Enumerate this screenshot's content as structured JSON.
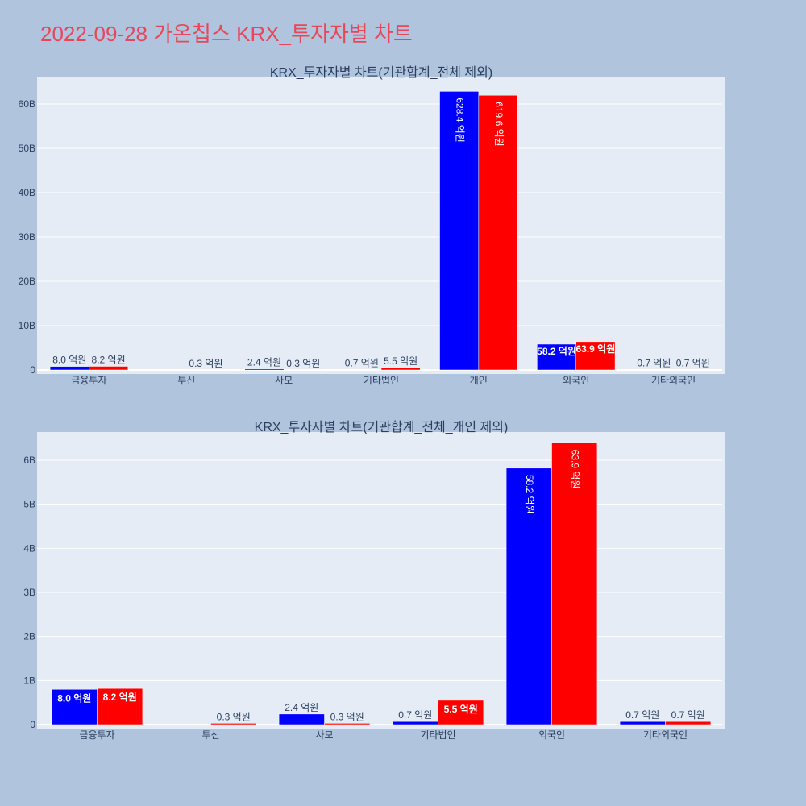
{
  "page_title": "2022-09-28 가온칩스 KRX_투자자별 차트",
  "colors": {
    "buy": "#0000ff",
    "sell": "#ff0000",
    "plot_bg": "#e5ecf6",
    "page_bg": "#b0c4de",
    "title": "#e8475b"
  },
  "chart_data": [
    {
      "type": "bar",
      "title": "KRX_투자자별 차트(기관합계_전체 제외)",
      "categories": [
        "금융투자",
        "투신",
        "사모",
        "기타법인",
        "개인",
        "외국인",
        "기타외국인"
      ],
      "series": [
        {
          "values": [
            0.8,
            0,
            0.24,
            0.07,
            62.84,
            5.82,
            0.07
          ],
          "labels": [
            "8.0 억원",
            "",
            "2.4 억원",
            "0.7 억원",
            "628.4 억원",
            "58.2 억원",
            "0.7 억원"
          ]
        },
        {
          "values": [
            0.82,
            0.03,
            0.03,
            0.55,
            61.96,
            6.39,
            0.07
          ],
          "labels": [
            "8.2 억원",
            "0.3 억원",
            "0.3 억원",
            "5.5 억원",
            "619.6 억원",
            "63.9 억원",
            "0.7 억원"
          ]
        }
      ],
      "yticks": [
        "0",
        "10B",
        "20B",
        "30B",
        "40B",
        "50B",
        "60B"
      ],
      "ytick_values": [
        0,
        10,
        20,
        30,
        40,
        50,
        60
      ],
      "ylim": [
        0,
        66
      ],
      "grid": true
    },
    {
      "type": "bar",
      "title": "KRX_투자자별 차트(기관합계_전체_개인 제외)",
      "categories": [
        "금융투자",
        "투신",
        "사모",
        "기타법인",
        "외국인",
        "기타외국인"
      ],
      "series": [
        {
          "values": [
            0.8,
            0,
            0.24,
            0.07,
            5.82,
            0.07
          ],
          "labels": [
            "8.0 억원",
            "",
            "2.4 억원",
            "0.7 억원",
            "58.2 억원",
            "0.7 억원"
          ]
        },
        {
          "values": [
            0.82,
            0.03,
            0.03,
            0.55,
            6.39,
            0.07
          ],
          "labels": [
            "8.2 억원",
            "0.3 억원",
            "0.3 억원",
            "5.5 억원",
            "63.9 억원",
            "0.7 억원"
          ]
        }
      ],
      "yticks": [
        "0",
        "1B",
        "2B",
        "3B",
        "4B",
        "5B",
        "6B"
      ],
      "ytick_values": [
        0,
        1,
        2,
        3,
        4,
        5,
        6
      ],
      "ylim": [
        0,
        6.64
      ],
      "grid": true
    }
  ]
}
